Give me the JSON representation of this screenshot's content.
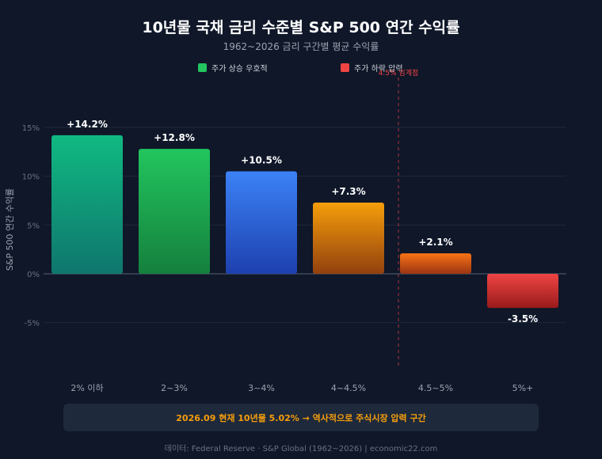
{
  "chart_data": {
    "type": "bar",
    "title": "10년물 국채 금리 수준별 S&P 500 연간 수익률",
    "subtitle": "1962~2026 금리 구간별 평균 수익률",
    "ylabel": "S&P 500 연간 수익률",
    "xlabel": "",
    "ylim": [
      -10,
      17.5
    ],
    "yticks": [
      -5,
      0,
      5,
      10,
      15
    ],
    "ytick_labels": [
      "-5%",
      "0%",
      "5%",
      "10%",
      "15%"
    ],
    "categories": [
      "2% 이하",
      "2~3%",
      "3~4%",
      "4~4.5%",
      "4.5~5%",
      "5%+"
    ],
    "values": [
      14.2,
      12.8,
      10.5,
      7.3,
      2.1,
      -3.5
    ],
    "data_labels": [
      "+14.2%",
      "+12.8%",
      "+10.5%",
      "+7.3%",
      "+2.1%",
      "-3.5%"
    ],
    "bar_colors": [
      [
        "#10b981",
        "#0f766e"
      ],
      [
        "#22c55e",
        "#15803d"
      ],
      [
        "#3b82f6",
        "#1e40af"
      ],
      [
        "#f59e0b",
        "#92400e"
      ],
      [
        "#f97316",
        "#9a3412"
      ],
      [
        "#ef4444",
        "#991b1b"
      ]
    ],
    "grid": true,
    "legend": [
      {
        "label": "주가 상승 우호적",
        "color": "#22c55e"
      },
      {
        "label": "주가 하락 압력",
        "color": "#ef4444"
      }
    ],
    "legend_position": "top-center",
    "threshold": {
      "label": "4.5% 임계점",
      "color": "#ef4444",
      "after_category": "4~4.5%"
    }
  },
  "note": "2026.09 현재 10년물 5.02% → 역사적으로 주식시장 압력 구간",
  "source": "데이터: Federal Reserve · S&P Global (1962~2026) | economic22.com",
  "colors": {
    "background": "#0f1729",
    "note_text": "#f59e0b",
    "grid": "#1e293b"
  }
}
